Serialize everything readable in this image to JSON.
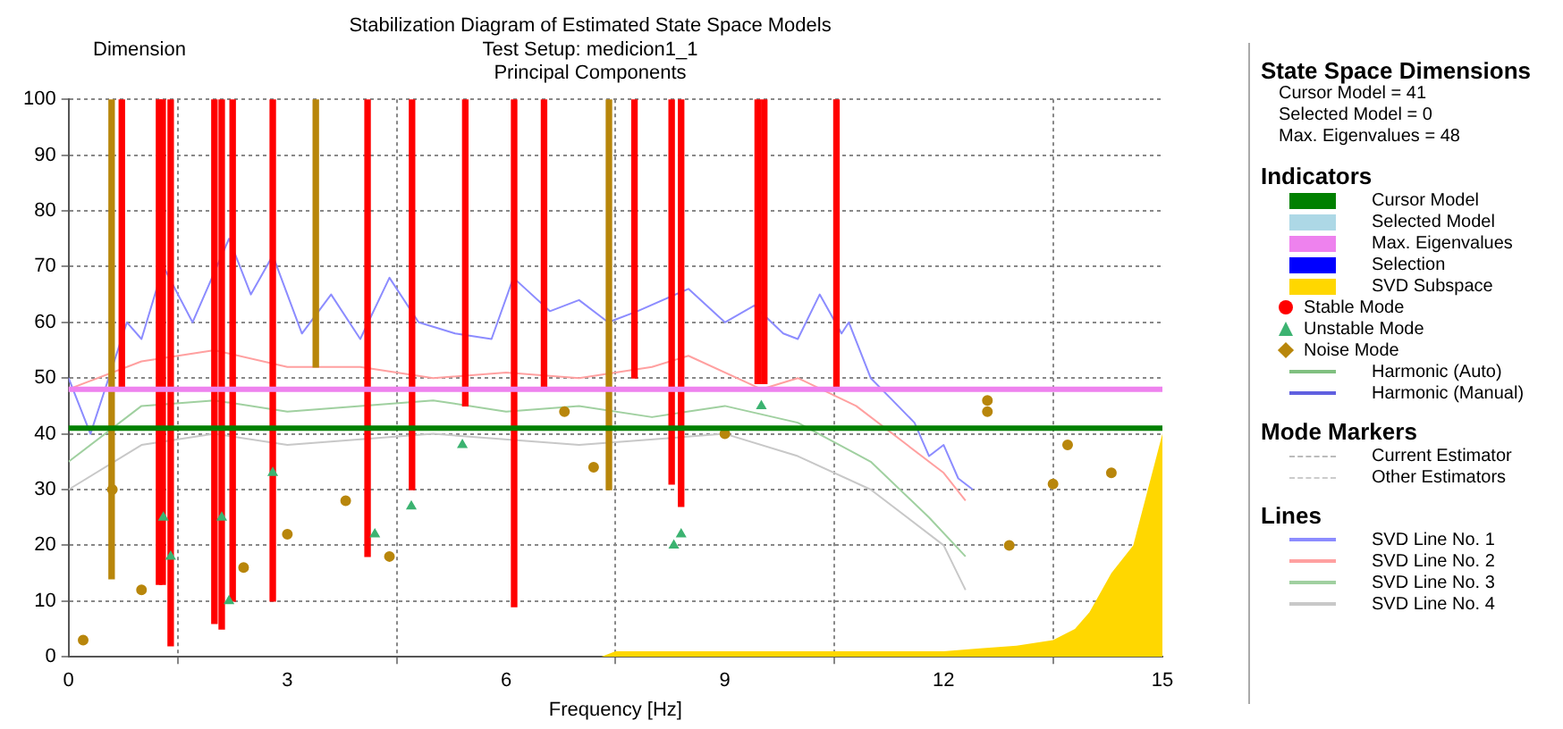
{
  "chart_data": {
    "type": "scatter",
    "title": "Stabilization Diagram of Estimated State Space Models",
    "subtitle": "Test Setup: medicion1_1\nPrincipal Components",
    "xlabel": "Frequency [Hz]",
    "ylabel": "Dimension",
    "xlim": [
      0,
      15
    ],
    "xticks": [
      0,
      3,
      6,
      9,
      12,
      15
    ],
    "ylim": [
      0,
      100
    ],
    "yticks": [
      0,
      10,
      20,
      30,
      40,
      50,
      60,
      70,
      80,
      90,
      100
    ],
    "grid": true,
    "legend": "right",
    "ref_lines": [
      {
        "axis": "y",
        "value": 41,
        "label": "Cursor Model",
        "color": "#008000"
      },
      {
        "axis": "y",
        "value": 48,
        "label": "Max. Eigenvalues",
        "color": "#ee82ee"
      }
    ],
    "annotations": [
      "State Space Dimensions",
      "Cursor Model = 41",
      "Selected Model = 0",
      "Max. Eigenvalues = 48",
      "Indicators",
      "Selected Model",
      "Selection",
      "Harmonic (Auto)",
      "Harmonic (Manual)",
      "Mode Markers",
      "Current Estimator",
      "Other Estimators",
      "Lines"
    ],
    "series": [
      {
        "name": "SVD Subspace",
        "type": "area",
        "color": "#ffd700",
        "x": [
          0,
          7.3,
          7.5,
          12,
          12.5,
          13,
          13.5,
          13.8,
          14,
          14.3,
          14.6,
          14.8,
          15
        ],
        "values": [
          0,
          0,
          1,
          1,
          1.5,
          2,
          3,
          5,
          8,
          15,
          20,
          30,
          40
        ]
      },
      {
        "name": "SVD Line No. 1",
        "type": "line",
        "color": "#8c8cff",
        "x": [
          0,
          0.3,
          0.8,
          1.0,
          1.3,
          1.7,
          2.2,
          2.5,
          2.8,
          3.2,
          3.6,
          4.0,
          4.4,
          4.8,
          5.3,
          5.8,
          6.1,
          6.6,
          7.0,
          7.4,
          7.8,
          8.5,
          9.0,
          9.4,
          9.8,
          10.0,
          10.3,
          10.6,
          10.7,
          11.0,
          11.3,
          11.6,
          11.8,
          12.0,
          12.2,
          12.4
        ],
        "values": [
          50,
          40,
          60,
          57,
          70,
          60,
          75,
          65,
          72,
          58,
          65,
          57,
          68,
          60,
          58,
          57,
          68,
          62,
          64,
          60,
          62,
          66,
          60,
          63,
          58,
          57,
          65,
          58,
          60,
          50,
          46,
          42,
          36,
          38,
          32,
          30
        ]
      },
      {
        "name": "SVD Line No. 2",
        "type": "line",
        "color": "#ffa0a0",
        "x": [
          0,
          1,
          2,
          3,
          4,
          5,
          6,
          7,
          8,
          8.5,
          9.5,
          10,
          10.8,
          11.5,
          12,
          12.3
        ],
        "values": [
          48,
          53,
          55,
          52,
          52,
          50,
          51,
          50,
          52,
          54,
          48,
          50,
          45,
          38,
          33,
          28
        ]
      },
      {
        "name": "SVD Line No. 3",
        "type": "line",
        "color": "#a0d0a0",
        "x": [
          0,
          1,
          2,
          3,
          4,
          5,
          6,
          7,
          8,
          9,
          10,
          11,
          11.8,
          12.3
        ],
        "values": [
          35,
          45,
          46,
          44,
          45,
          46,
          44,
          45,
          43,
          45,
          42,
          35,
          25,
          18
        ]
      },
      {
        "name": "SVD Line No. 4",
        "type": "line",
        "color": "#c8c8c8",
        "x": [
          0,
          1,
          2,
          3,
          5,
          7,
          9,
          10,
          11,
          12,
          12.3
        ],
        "values": [
          30,
          38,
          40,
          38,
          40,
          38,
          40,
          36,
          30,
          20,
          12
        ]
      },
      {
        "type": "bar",
        "color": "#b8860b",
        "x": [
          0.59,
          3.39,
          7.41
        ],
        "base": [
          14,
          52,
          30
        ],
        "values": [
          86,
          48,
          70
        ]
      },
      {
        "name": "Stable Mode",
        "type": "bar",
        "color": "#ff0000",
        "x": [
          0.73,
          1.24,
          1.29,
          1.4,
          2.0,
          2.1,
          2.25,
          2.8,
          4.1,
          4.71,
          5.44,
          6.11,
          6.52,
          7.76,
          8.27,
          8.4,
          9.45,
          9.54,
          10.53
        ],
        "base": [
          48,
          13,
          13,
          2,
          6,
          5,
          10,
          10,
          18,
          30,
          45,
          9,
          48,
          50,
          31,
          27,
          49,
          49,
          48
        ],
        "values": [
          52,
          87,
          87,
          98,
          94,
          95,
          90,
          90,
          82,
          70,
          55,
          91,
          52,
          50,
          69,
          73,
          51,
          51,
          52
        ]
      },
      {
        "name": "Unstable Mode",
        "marker": "triangle",
        "color": "#3cb371",
        "x": [
          1.3,
          1.4,
          2.1,
          2.2,
          2.8,
          4.2,
          4.7,
          5.4,
          8.3,
          8.4,
          9.5
        ],
        "values": [
          25,
          18,
          25,
          10,
          33,
          22,
          27,
          38,
          20,
          22,
          45
        ]
      },
      {
        "name": "Noise Mode",
        "marker": "circle",
        "color": "#b8860b",
        "x": [
          0.2,
          0.6,
          1.0,
          2.4,
          3.0,
          3.8,
          4.4,
          6.8,
          7.2,
          9.0,
          12.6,
          12.6,
          12.9,
          13.5,
          13.7,
          14.3
        ],
        "values": [
          3,
          30,
          12,
          16,
          22,
          28,
          18,
          44,
          34,
          40,
          46,
          44,
          20,
          31,
          38,
          33
        ]
      }
    ]
  }
}
